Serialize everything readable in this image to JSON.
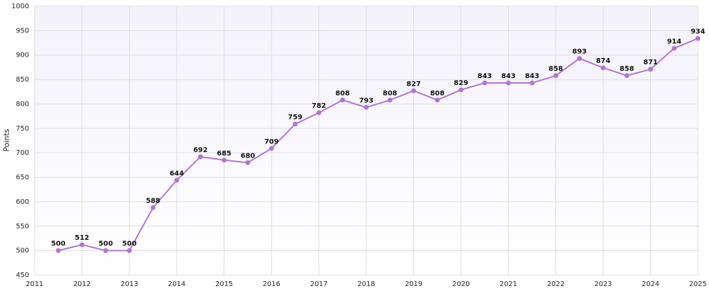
{
  "chart_data": {
    "type": "line",
    "y_label": "Points",
    "x": [
      2011.5,
      2012,
      2012.5,
      2013,
      2013.5,
      2014,
      2014.5,
      2015,
      2015.5,
      2016,
      2016.5,
      2017,
      2017.5,
      2018,
      2018.5,
      2019,
      2019.5,
      2020,
      2020.5,
      2021,
      2021.5,
      2022,
      2022.5,
      2023,
      2023.5,
      2024,
      2024.5,
      2025
    ],
    "series": [
      {
        "name": "Points",
        "color": "#b374d1",
        "values": [
          500,
          512,
          500,
          500,
          588,
          644,
          692,
          685,
          680,
          709,
          759,
          782,
          808,
          793,
          808,
          827,
          808,
          829,
          843,
          843,
          843,
          858,
          893,
          874,
          858,
          871,
          914,
          934
        ]
      }
    ],
    "xlim": [
      2011,
      2025
    ],
    "xticks": [
      2011,
      2012,
      2013,
      2014,
      2015,
      2016,
      2017,
      2018,
      2019,
      2020,
      2021,
      2022,
      2023,
      2024,
      2025
    ],
    "ylim": [
      450,
      1000
    ],
    "yticks": [
      450,
      500,
      550,
      600,
      650,
      700,
      750,
      800,
      850,
      900,
      950,
      1000
    ],
    "grid": true,
    "data_labels": true
  }
}
